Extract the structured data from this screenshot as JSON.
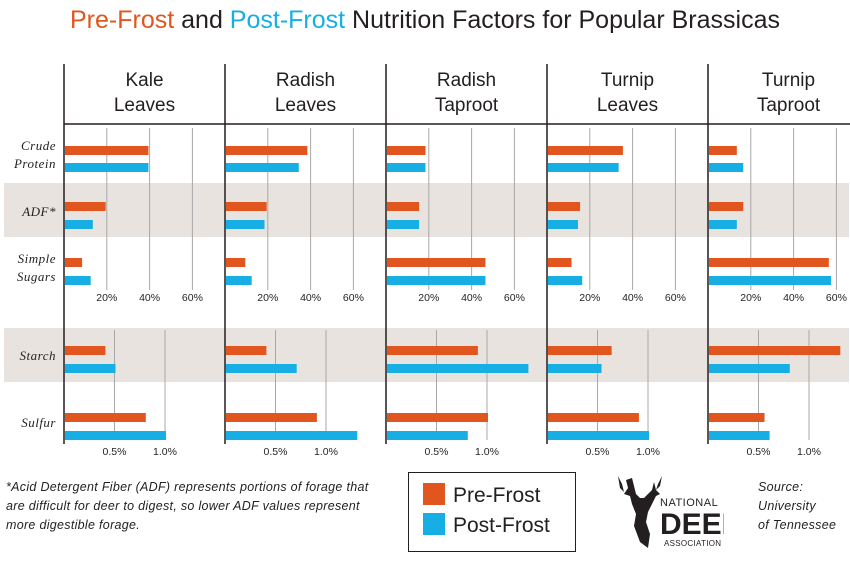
{
  "title": {
    "pre_word": "Pre-Frost",
    "and_word": " and ",
    "post_word": "Post-Frost",
    "rest": " Nutrition Factors for Popular Brassicas"
  },
  "colors": {
    "pre_frost": "#e0561e",
    "post_frost": "#17aee4",
    "band": "#e8e3df",
    "text": "#231f20",
    "grid": "#a8a8a8"
  },
  "chart_data": {
    "type": "bar",
    "orientation": "horizontal",
    "categories": [
      [
        "Kale",
        "Leaves"
      ],
      [
        "Radish",
        "Leaves"
      ],
      [
        "Radish",
        "Taproot"
      ],
      [
        "Turnip",
        "Leaves"
      ],
      [
        "Turnip",
        "Taproot"
      ]
    ],
    "metrics": [
      {
        "label": [
          "Crude",
          "Protein"
        ],
        "unit": "percent",
        "shaded": false
      },
      {
        "label": [
          "ADF*"
        ],
        "unit": "percent",
        "shaded": true
      },
      {
        "label": [
          "Simple",
          "Sugars"
        ],
        "unit": "percent",
        "shaded": false
      },
      {
        "label": [
          "Starch"
        ],
        "unit": "fraction",
        "shaded": true
      },
      {
        "label": [
          "Sulfur"
        ],
        "unit": "fraction",
        "shaded": false
      }
    ],
    "percent_axis": {
      "ticks": [
        "20%",
        "40%",
        "60%"
      ],
      "tick_values": [
        20,
        40,
        60
      ],
      "xlim": [
        0,
        70
      ]
    },
    "fraction_axis": {
      "ticks": [
        "0.5%",
        "1.0%"
      ],
      "tick_values": [
        0.5,
        1.0
      ],
      "xlim": [
        0,
        1.35
      ]
    },
    "series": [
      {
        "name": "Pre-Frost",
        "values": {
          "Crude Protein": [
            39,
            38,
            18,
            35,
            13
          ],
          "ADF*": [
            19,
            19,
            15,
            15,
            16
          ],
          "Simple Sugars": [
            8,
            9,
            46,
            11,
            56
          ],
          "Starch": [
            0.4,
            0.4,
            0.9,
            0.63,
            1.3
          ],
          "Sulfur": [
            0.8,
            0.9,
            1.0,
            0.9,
            0.55
          ]
        }
      },
      {
        "name": "Post-Frost",
        "values": {
          "Crude Protein": [
            39,
            34,
            18,
            33,
            16
          ],
          "ADF*": [
            13,
            18,
            15,
            14,
            13
          ],
          "Simple Sugars": [
            12,
            12,
            46,
            16,
            57
          ],
          "Starch": [
            0.5,
            0.7,
            1.4,
            0.53,
            0.8
          ],
          "Sulfur": [
            1.0,
            1.3,
            0.8,
            1.0,
            0.6
          ]
        }
      }
    ]
  },
  "footnote": "*Acid Detergent Fiber (ADF) represents portions of forage that are difficult for deer to digest, so lower ADF values represent more digestible forage.",
  "legend": {
    "pre": "Pre-Frost",
    "post": "Post-Frost"
  },
  "logo": {
    "line1": "NATIONAL",
    "line2": "DEER",
    "line3": "ASSOCIATION"
  },
  "source": {
    "line1": "Source:",
    "line2": "University",
    "line3": "of Tennessee"
  }
}
